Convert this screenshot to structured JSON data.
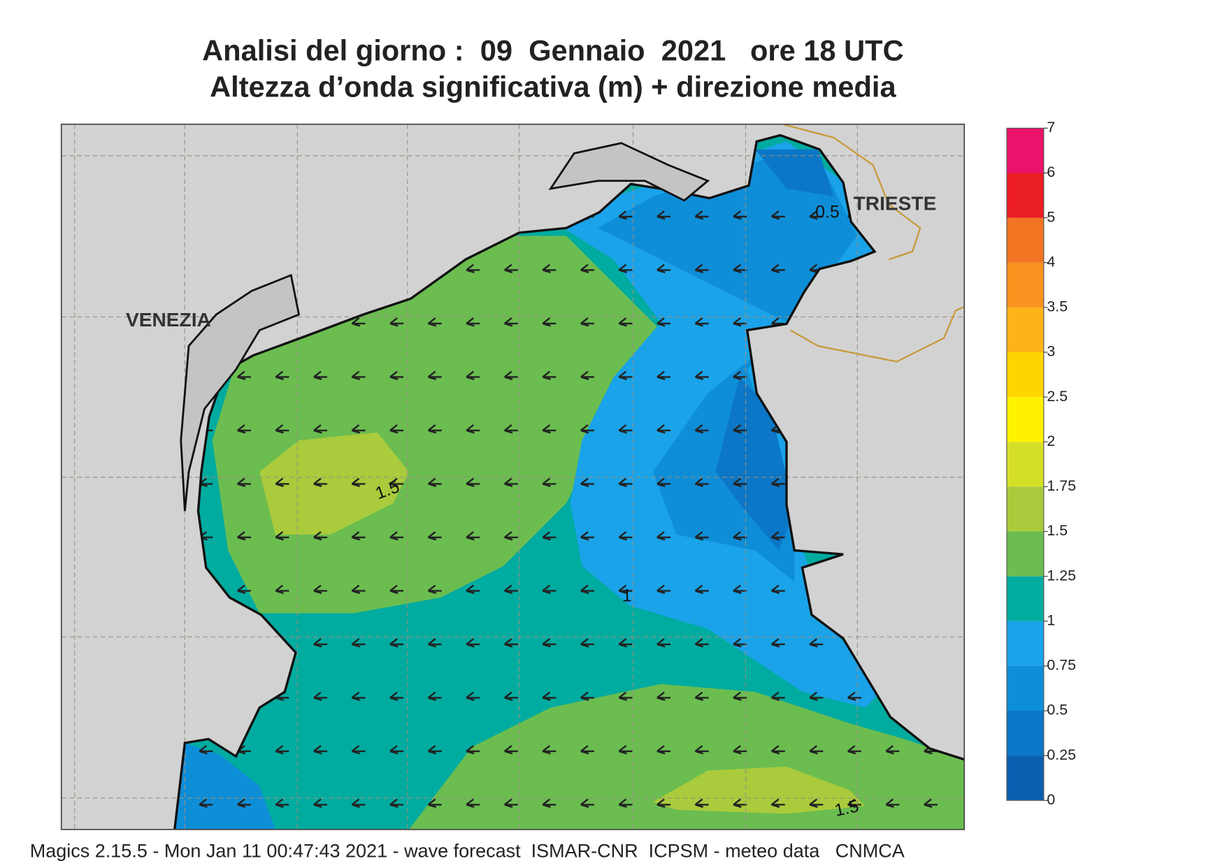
{
  "map": {
    "title": "Analisi del giorno :  09  Gennaio  2021   ore 18 UTC",
    "subtitle": "Altezza d’onda significativa (m) + direzione media",
    "places": [
      "VENEZIA",
      "TRIESTE"
    ],
    "contour_labels": [
      0.5,
      1.5,
      1,
      1.5
    ],
    "colorbar": {
      "ticks": [
        0,
        0.25,
        0.5,
        0.75,
        1,
        1.25,
        1.5,
        1.75,
        2,
        2.5,
        3,
        3.5,
        4,
        5,
        6,
        7
      ],
      "colors": [
        "#0a5fb0",
        "#0b77c6",
        "#0f8ed8",
        "#1aa3e8",
        "#00aba0",
        "#6bbd50",
        "#a9cb3c",
        "#d6df27",
        "#fff200",
        "#ffd500",
        "#ffb31a",
        "#f9921f",
        "#f27322",
        "#ea1d25",
        "#e9136b"
      ]
    },
    "footer": "Magics 2.15.5 - Mon Jan 11 00:47:43 2021 - wave forecast  ISMAR-CNR  ICPSM - meteo data   CNMCA"
  }
}
